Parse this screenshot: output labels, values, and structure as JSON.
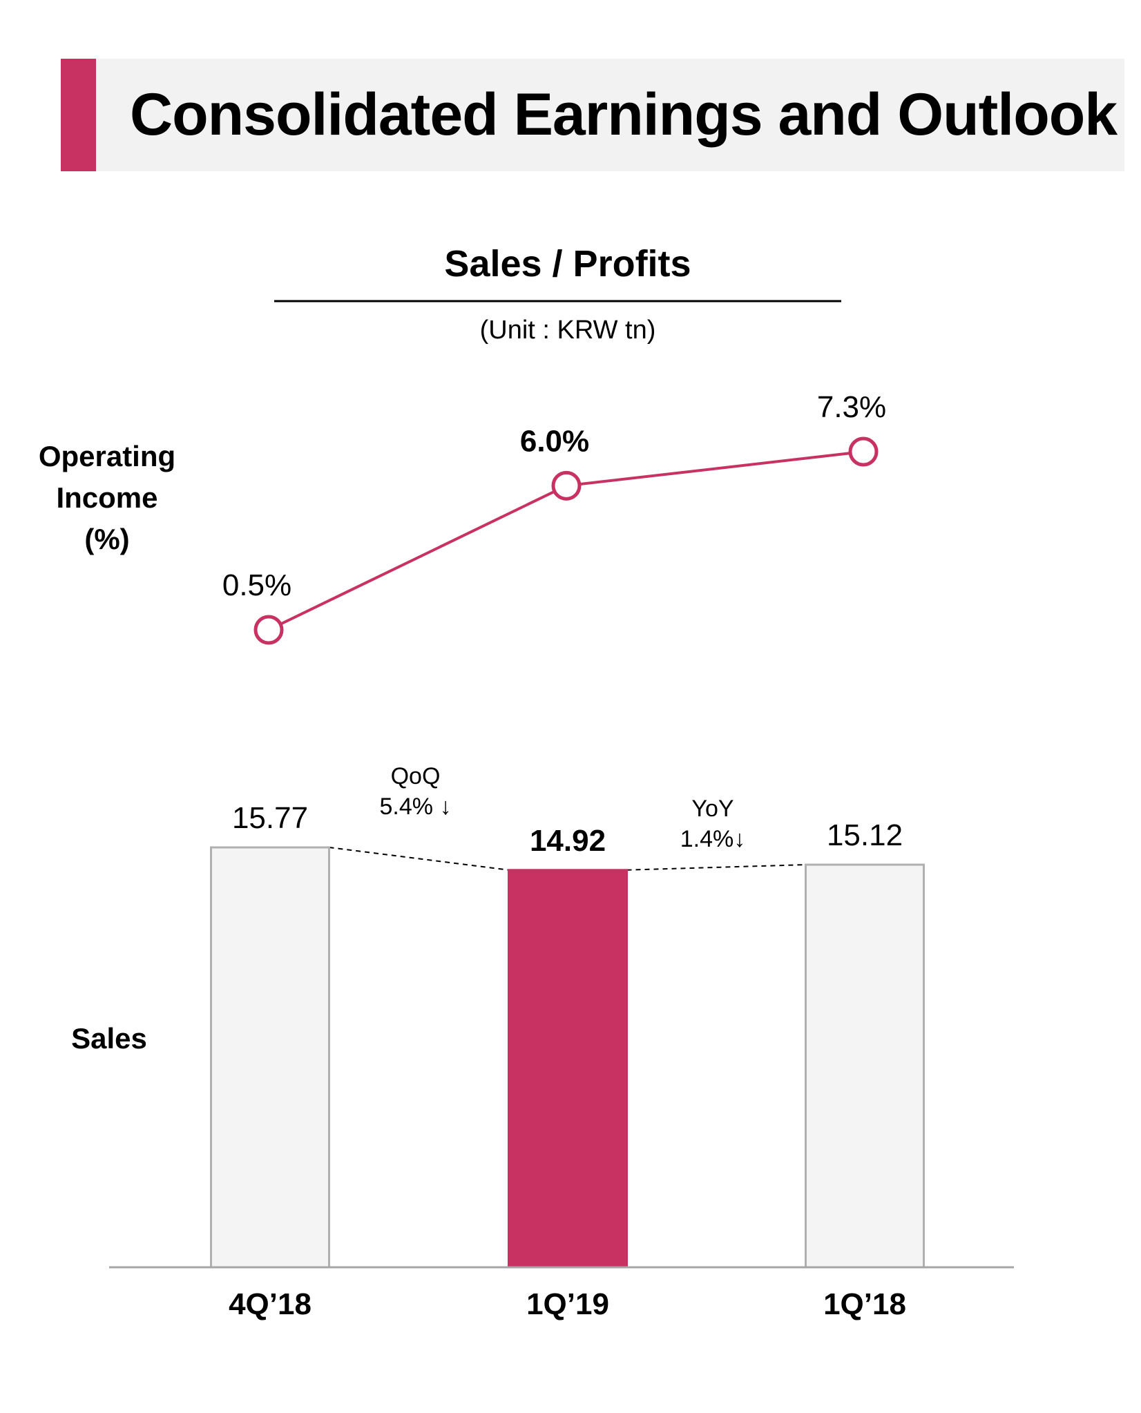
{
  "page": {
    "title": "Consolidated Earnings and Outlook",
    "accent_color": "#c73262"
  },
  "chart_data": {
    "type": "bar+line",
    "title": "Sales / Profits",
    "subtitle": "(Unit : KRW tn)",
    "categories": [
      "4Q’18",
      "1Q’19",
      "1Q’18"
    ],
    "line_series": {
      "label_lines": [
        "Operating",
        "Income",
        "(%)"
      ],
      "values": [
        0.5,
        6.0,
        7.3
      ],
      "value_labels": [
        "0.5%",
        "6.0%",
        "7.3%"
      ],
      "highlight_index": 1,
      "color": "#c73262"
    },
    "bar_series": {
      "label": "Sales",
      "values": [
        15.77,
        14.92,
        15.12
      ],
      "value_labels": [
        "15.77",
        "14.92",
        "15.12"
      ],
      "highlight_index": 1,
      "highlight_color": "#c73262",
      "normal_color": "#f4f4f4",
      "border_color": "#b0b0b0"
    },
    "comparisons": [
      {
        "label": "QoQ",
        "value": "5.4% ↓"
      },
      {
        "label": "YoY",
        "value": "1.4%↓"
      }
    ]
  }
}
